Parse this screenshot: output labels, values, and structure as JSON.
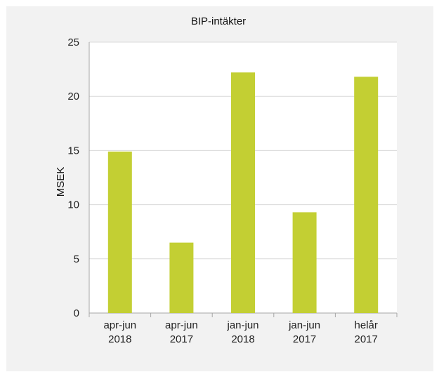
{
  "chart_data": {
    "type": "bar",
    "title": "BIP-intäkter",
    "xlabel": "",
    "ylabel": "MSEK",
    "categories": [
      [
        "apr-jun",
        "2018"
      ],
      [
        "apr-jun",
        "2017"
      ],
      [
        "jan-jun",
        "2018"
      ],
      [
        "jan-jun",
        "2017"
      ],
      [
        "helår",
        "2017"
      ]
    ],
    "values": [
      14.9,
      6.5,
      22.2,
      9.3,
      21.8
    ],
    "ylim": [
      0,
      25
    ],
    "yticks": [
      "0",
      "5",
      "10",
      "15",
      "20",
      "25"
    ],
    "grid": true,
    "legend": "none",
    "colors": {
      "bar": "#c3cf33",
      "plot_background": "#ffffff",
      "frame_background": "#f2f2f2",
      "grid": "#d9d9d9",
      "axis": "#a6a6a6"
    }
  }
}
